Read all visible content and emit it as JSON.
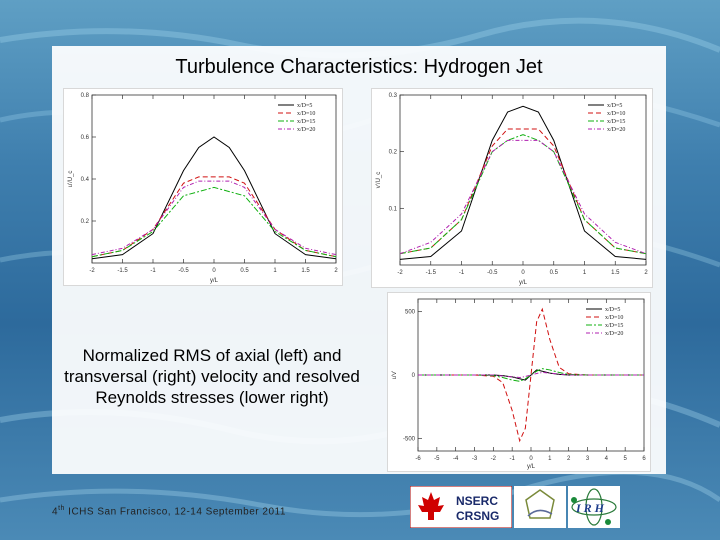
{
  "slide": {
    "title": "Turbulence Characteristics: Hydrogen Jet",
    "caption": "Normalized RMS of axial (left) and transversal (right) velocity and resolved Reynolds stresses (lower right)",
    "footer": "4th ICHS San Francisco, 12-14 September 2011",
    "logos": {
      "nserc_line1": "NSERC",
      "nserc_line2": "CRSNG",
      "irh": "I R H"
    }
  },
  "colors": {
    "s5": "#000000",
    "s10": "#d01010",
    "s15": "#10b010",
    "s20": "#b020b0"
  },
  "chart_data": [
    {
      "type": "line",
      "xlabel": "y/L",
      "ylabel": "u'/U_c",
      "xlim": [
        -2,
        2
      ],
      "ylim": [
        0,
        0.8
      ],
      "xticks": [
        "-2",
        "-1.5",
        "-1",
        "-0.5",
        "0",
        "0.5",
        "1",
        "1.5",
        "2"
      ],
      "yticks": [
        "0.2",
        "0.4",
        "0.6",
        "0.8"
      ],
      "x": [
        -2,
        -1.5,
        -1,
        -0.5,
        -0.25,
        0,
        0.25,
        0.5,
        1,
        1.5,
        2
      ],
      "series": [
        {
          "name": "x/D=5",
          "values": [
            0.02,
            0.04,
            0.14,
            0.44,
            0.55,
            0.6,
            0.55,
            0.44,
            0.14,
            0.04,
            0.02
          ]
        },
        {
          "name": "x/D=10",
          "values": [
            0.03,
            0.06,
            0.16,
            0.38,
            0.41,
            0.41,
            0.41,
            0.38,
            0.16,
            0.06,
            0.03
          ]
        },
        {
          "name": "x/D=15",
          "values": [
            0.03,
            0.06,
            0.15,
            0.32,
            0.34,
            0.36,
            0.34,
            0.32,
            0.15,
            0.06,
            0.03
          ]
        },
        {
          "name": "x/D=20",
          "values": [
            0.04,
            0.07,
            0.16,
            0.36,
            0.39,
            0.39,
            0.39,
            0.36,
            0.16,
            0.07,
            0.04
          ]
        }
      ],
      "legend": "top-right"
    },
    {
      "type": "line",
      "xlabel": "y/L",
      "ylabel": "v'/U_c",
      "xlim": [
        -2,
        2
      ],
      "ylim": [
        0,
        0.3
      ],
      "xticks": [
        "-2",
        "-1.5",
        "-1",
        "-0.5",
        "0",
        "0.5",
        "1",
        "1.5",
        "2"
      ],
      "yticks": [
        "0.1",
        "0.2",
        "0.3"
      ],
      "x": [
        -2,
        -1.5,
        -1,
        -0.5,
        -0.25,
        0,
        0.25,
        0.5,
        1,
        1.5,
        2
      ],
      "series": [
        {
          "name": "x/D=5",
          "values": [
            0.01,
            0.015,
            0.06,
            0.22,
            0.27,
            0.28,
            0.27,
            0.22,
            0.06,
            0.015,
            0.01
          ]
        },
        {
          "name": "x/D=10",
          "values": [
            0.02,
            0.03,
            0.08,
            0.21,
            0.24,
            0.24,
            0.24,
            0.21,
            0.08,
            0.03,
            0.02
          ]
        },
        {
          "name": "x/D=15",
          "values": [
            0.02,
            0.03,
            0.08,
            0.2,
            0.22,
            0.23,
            0.22,
            0.2,
            0.08,
            0.03,
            0.02
          ]
        },
        {
          "name": "x/D=20",
          "values": [
            0.02,
            0.04,
            0.09,
            0.2,
            0.22,
            0.22,
            0.22,
            0.2,
            0.09,
            0.04,
            0.02
          ]
        }
      ],
      "legend": "top-right"
    },
    {
      "type": "line",
      "xlabel": "y/L",
      "ylabel": "u'v'",
      "xlim": [
        -6,
        6
      ],
      "ylim": [
        -600,
        600
      ],
      "xticks": [
        "-6",
        "-5",
        "-4",
        "-3",
        "-2",
        "-1",
        "0",
        "1",
        "2",
        "3",
        "4",
        "5",
        "6"
      ],
      "yticks": [
        "500",
        "0",
        "-500"
      ],
      "x": [
        -6,
        -3,
        -2,
        -1.5,
        -1,
        -0.6,
        -0.3,
        0,
        0.3,
        0.6,
        1,
        1.5,
        2,
        3,
        6
      ],
      "series": [
        {
          "name": "x/D=5",
          "values": [
            0,
            0,
            0,
            -5,
            -15,
            -30,
            -40,
            0,
            40,
            30,
            15,
            5,
            0,
            0,
            0
          ]
        },
        {
          "name": "x/D=10",
          "values": [
            0,
            0,
            -10,
            -60,
            -280,
            -520,
            -420,
            0,
            420,
            520,
            280,
            60,
            10,
            0,
            0
          ]
        },
        {
          "name": "x/D=15",
          "values": [
            0,
            0,
            -5,
            -20,
            -40,
            -50,
            -30,
            0,
            30,
            50,
            40,
            20,
            5,
            0,
            0
          ]
        },
        {
          "name": "x/D=20",
          "values": [
            0,
            0,
            0,
            -8,
            -15,
            -20,
            -12,
            0,
            12,
            20,
            15,
            8,
            0,
            0,
            0
          ]
        }
      ],
      "legend": "top-right"
    }
  ]
}
